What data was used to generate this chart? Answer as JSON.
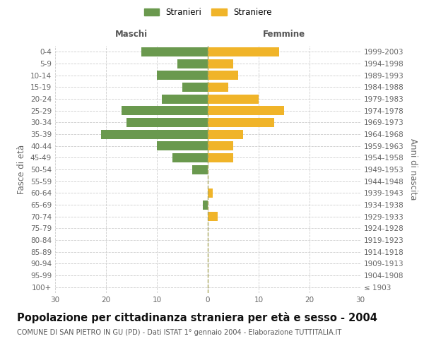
{
  "age_groups": [
    "100+",
    "95-99",
    "90-94",
    "85-89",
    "80-84",
    "75-79",
    "70-74",
    "65-69",
    "60-64",
    "55-59",
    "50-54",
    "45-49",
    "40-44",
    "35-39",
    "30-34",
    "25-29",
    "20-24",
    "15-19",
    "10-14",
    "5-9",
    "0-4"
  ],
  "birth_years": [
    "≤ 1903",
    "1904-1908",
    "1909-1913",
    "1914-1918",
    "1919-1923",
    "1924-1928",
    "1929-1933",
    "1934-1938",
    "1939-1943",
    "1944-1948",
    "1949-1953",
    "1954-1958",
    "1959-1963",
    "1964-1968",
    "1969-1973",
    "1974-1978",
    "1979-1983",
    "1984-1988",
    "1989-1993",
    "1994-1998",
    "1999-2003"
  ],
  "maschi": [
    0,
    0,
    0,
    0,
    0,
    0,
    0,
    1,
    0,
    0,
    3,
    7,
    10,
    21,
    16,
    17,
    9,
    5,
    10,
    6,
    13
  ],
  "femmine": [
    0,
    0,
    0,
    0,
    0,
    0,
    2,
    0,
    1,
    0,
    0,
    5,
    5,
    7,
    13,
    15,
    10,
    4,
    6,
    5,
    14
  ],
  "maschi_color": "#6a994e",
  "femmine_color": "#f0b429",
  "background_color": "#ffffff",
  "grid_color": "#cccccc",
  "xlim": 30,
  "title": "Popolazione per cittadinanza straniera per età e sesso - 2004",
  "subtitle": "COMUNE DI SAN PIETRO IN GU (PD) - Dati ISTAT 1° gennaio 2004 - Elaborazione TUTTITALIA.IT",
  "ylabel_left": "Fasce di età",
  "ylabel_right": "Anni di nascita",
  "xlabel_left": "Maschi",
  "xlabel_top_right": "Femmine",
  "legend_stranieri": "Stranieri",
  "legend_straniere": "Straniere",
  "title_fontsize": 10.5,
  "subtitle_fontsize": 7,
  "tick_fontsize": 7.5,
  "label_fontsize": 8.5
}
